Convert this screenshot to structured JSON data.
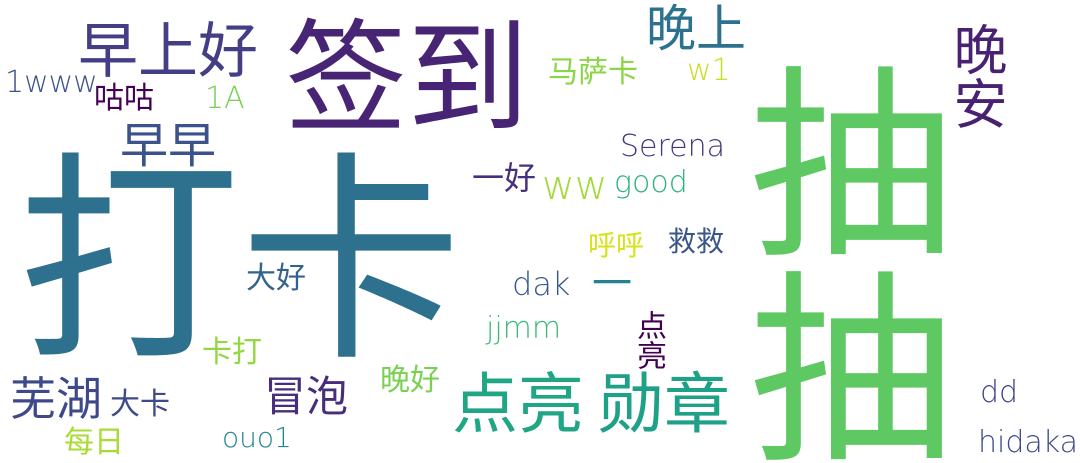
{
  "words": [
    {
      "text": "打卡",
      "color": "#2d718e"
    },
    {
      "text": "抽抽",
      "color": "#5ec962"
    },
    {
      "text": "签到",
      "color": "#482475"
    },
    {
      "text": "早上好",
      "color": "#433e85"
    },
    {
      "text": "晚上",
      "color": "#2c728e"
    },
    {
      "text": "晚安",
      "color": "#482173"
    },
    {
      "text": "早早",
      "color": "#3b528b"
    },
    {
      "text": "点亮",
      "color": "#21a685"
    },
    {
      "text": "勋章",
      "color": "#1fa187"
    },
    {
      "text": "芜湖",
      "color": "#3e4989"
    },
    {
      "text": "冒泡",
      "color": "#472d7b"
    },
    {
      "text": "1www",
      "color": "#3b528b"
    },
    {
      "text": "咕咕",
      "color": "#440154"
    },
    {
      "text": "1A",
      "color": "#75d054"
    },
    {
      "text": "马萨卡",
      "color": "#8bd646"
    },
    {
      "text": "w1",
      "color": "#c5e021"
    },
    {
      "text": "Serena",
      "color": "#453781"
    },
    {
      "text": "一好",
      "color": "#46307e"
    },
    {
      "text": "ww",
      "color": "#a2da37"
    },
    {
      "text": "good",
      "color": "#2db27d"
    },
    {
      "text": "呼呼",
      "color": "#d8e219"
    },
    {
      "text": "救救",
      "color": "#3a548c"
    },
    {
      "text": "大好",
      "color": "#33638d"
    },
    {
      "text": "dak",
      "color": "#38588c"
    },
    {
      "text": "一",
      "color": "#26828e"
    },
    {
      "text": "jjmm",
      "color": "#3bbb75"
    },
    {
      "text": "点亮",
      "color": "#440154"
    },
    {
      "text": "卡打",
      "color": "#93d741"
    },
    {
      "text": "大卡",
      "color": "#3e4a89"
    },
    {
      "text": "晚好",
      "color": "#7ad151"
    },
    {
      "text": "dd",
      "color": "#414487"
    },
    {
      "text": "ouo1",
      "color": "#23888e"
    },
    {
      "text": "每日",
      "color": "#a8db34"
    },
    {
      "text": "hidaka",
      "color": "#3e4c8a"
    }
  ]
}
